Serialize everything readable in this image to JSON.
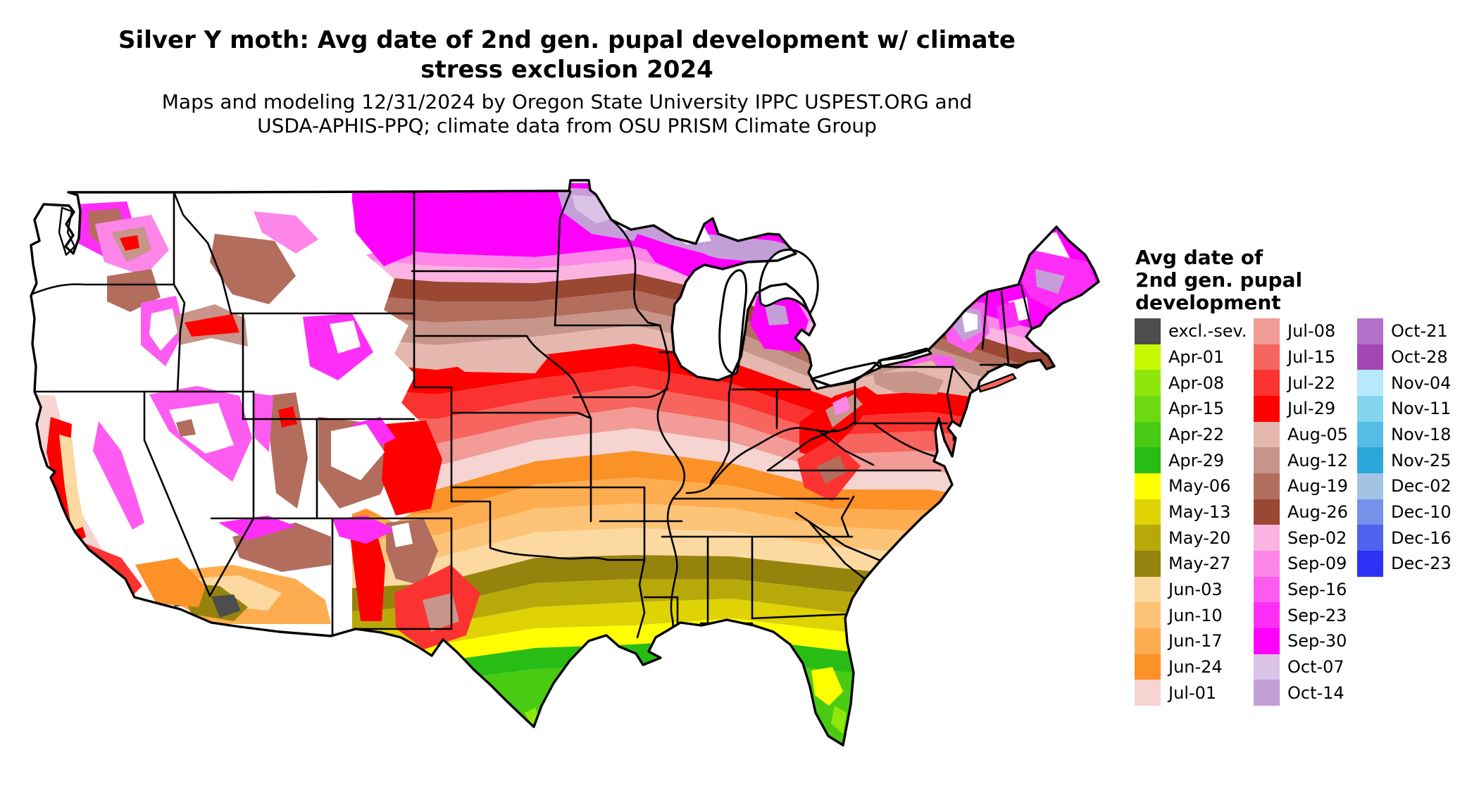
{
  "title": {
    "line1": "Silver Y moth: Avg date of 2nd gen. pupal development w/ climate",
    "line2": "stress exclusion 2024"
  },
  "subtitle": {
    "line1": "Maps and modeling 12/31/2024 by Oregon State University IPPC USPEST.ORG and",
    "line2": "USDA-APHIS-PPQ; climate data from OSU PRISM Climate Group"
  },
  "legend": {
    "title_lines": [
      "Avg date of",
      "2nd gen. pupal",
      "development"
    ],
    "columns": [
      {
        "items": [
          {
            "label": "excl.-sev.",
            "color": "#4d4d4d"
          },
          {
            "label": "Apr-01",
            "color": "#c7f901"
          },
          {
            "label": "Apr-08",
            "color": "#8ee70b"
          },
          {
            "label": "Apr-15",
            "color": "#6dd911"
          },
          {
            "label": "Apr-22",
            "color": "#49cb13"
          },
          {
            "label": "Apr-29",
            "color": "#28bd15"
          },
          {
            "label": "May-06",
            "color": "#ffff00"
          },
          {
            "label": "May-13",
            "color": "#dfd306"
          },
          {
            "label": "May-20",
            "color": "#b8a90a"
          },
          {
            "label": "May-27",
            "color": "#96830e"
          },
          {
            "label": "Jun-03",
            "color": "#fcd9a1"
          },
          {
            "label": "Jun-10",
            "color": "#fdc478"
          },
          {
            "label": "Jun-17",
            "color": "#fdad50"
          },
          {
            "label": "Jun-24",
            "color": "#fc9128"
          },
          {
            "label": "Jul-01",
            "color": "#f5d4d2"
          }
        ]
      },
      {
        "items": [
          {
            "label": "Jul-08",
            "color": "#f29b97"
          },
          {
            "label": "Jul-15",
            "color": "#f7655f"
          },
          {
            "label": "Jul-22",
            "color": "#fb3330"
          },
          {
            "label": "Jul-29",
            "color": "#ff0000"
          },
          {
            "label": "Aug-05",
            "color": "#e5b8af"
          },
          {
            "label": "Aug-12",
            "color": "#c8958b"
          },
          {
            "label": "Aug-19",
            "color": "#b26d5d"
          },
          {
            "label": "Aug-26",
            "color": "#9a4733"
          },
          {
            "label": "Sep-02",
            "color": "#fbb3e1"
          },
          {
            "label": "Sep-09",
            "color": "#fd86e8"
          },
          {
            "label": "Sep-16",
            "color": "#fe5cf0"
          },
          {
            "label": "Sep-23",
            "color": "#fe2ef7"
          },
          {
            "label": "Sep-30",
            "color": "#ff00fd"
          },
          {
            "label": "Oct-07",
            "color": "#dac3e7"
          },
          {
            "label": "Oct-14",
            "color": "#c49fd7"
          }
        ]
      },
      {
        "items": [
          {
            "label": "Oct-21",
            "color": "#b571c9"
          },
          {
            "label": "Oct-28",
            "color": "#a347b5"
          },
          {
            "label": "Nov-04",
            "color": "#b6e9fb"
          },
          {
            "label": "Nov-11",
            "color": "#83d4ef"
          },
          {
            "label": "Nov-18",
            "color": "#56bde5"
          },
          {
            "label": "Nov-25",
            "color": "#2ca7d9"
          },
          {
            "label": "Dec-02",
            "color": "#a3c3e5"
          },
          {
            "label": "Dec-10",
            "color": "#7691e9"
          },
          {
            "label": "Dec-16",
            "color": "#4e63f0"
          },
          {
            "label": "Dec-23",
            "color": "#2c31f5"
          }
        ]
      }
    ]
  },
  "map": {
    "background": "#ffffff",
    "outline_color": "#000000",
    "state_line_color": "#000000",
    "lake_fill": "#ffffff",
    "no_data_color": "#ffffff"
  }
}
